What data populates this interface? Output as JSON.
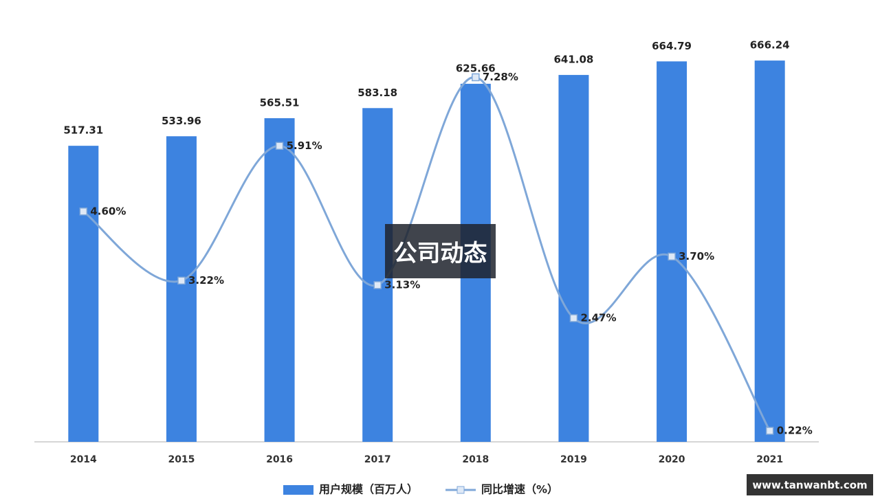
{
  "chart_data": {
    "type": "bar-line",
    "categories": [
      "2014",
      "2015",
      "2016",
      "2017",
      "2018",
      "2019",
      "2020",
      "2021"
    ],
    "series": [
      {
        "name": "用户规模（百万人）",
        "type": "bar",
        "color": "#3d83e0",
        "values": [
          517.31,
          533.96,
          565.51,
          583.18,
          625.66,
          641.08,
          664.79,
          666.24
        ]
      },
      {
        "name": "同比增速（%）",
        "type": "line",
        "axis": "y2",
        "color": "#7fa7d8",
        "values": [
          4.6,
          3.22,
          5.91,
          3.13,
          7.28,
          2.47,
          3.7,
          0.22
        ],
        "value_labels": [
          "4.60%",
          "3.22%",
          "5.91%",
          "3.13%",
          "7.28%",
          "2.47%",
          "3.70%",
          "0.22%"
        ]
      }
    ],
    "ylim": [
      0,
      700
    ],
    "y2lim": [
      0,
      8
    ],
    "legend": "bottom"
  },
  "overlay": "公司动态",
  "watermark": "www.tanwanbt.com"
}
